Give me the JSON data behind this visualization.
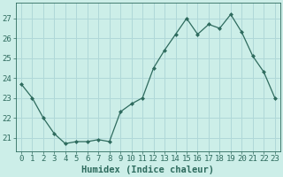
{
  "x": [
    0,
    1,
    2,
    3,
    4,
    5,
    6,
    7,
    8,
    9,
    10,
    11,
    12,
    13,
    14,
    15,
    16,
    17,
    18,
    19,
    20,
    21,
    22,
    23
  ],
  "y": [
    23.7,
    23.0,
    22.0,
    21.2,
    20.7,
    20.8,
    20.8,
    20.9,
    20.8,
    22.3,
    22.7,
    23.0,
    24.5,
    25.4,
    26.2,
    27.0,
    26.2,
    26.7,
    26.5,
    27.2,
    26.3,
    25.1,
    24.3,
    23.0
  ],
  "line_color": "#2e6b5e",
  "marker": "D",
  "marker_size": 2.0,
  "bg_color": "#cceee8",
  "grid_color": "#b0d8d8",
  "xlabel": "Humidex (Indice chaleur)",
  "ylabel_ticks": [
    21,
    22,
    23,
    24,
    25,
    26,
    27
  ],
  "ylim": [
    20.3,
    27.8
  ],
  "xlim": [
    -0.5,
    23.5
  ],
  "xlabel_fontsize": 7.5,
  "tick_fontsize": 6.5
}
